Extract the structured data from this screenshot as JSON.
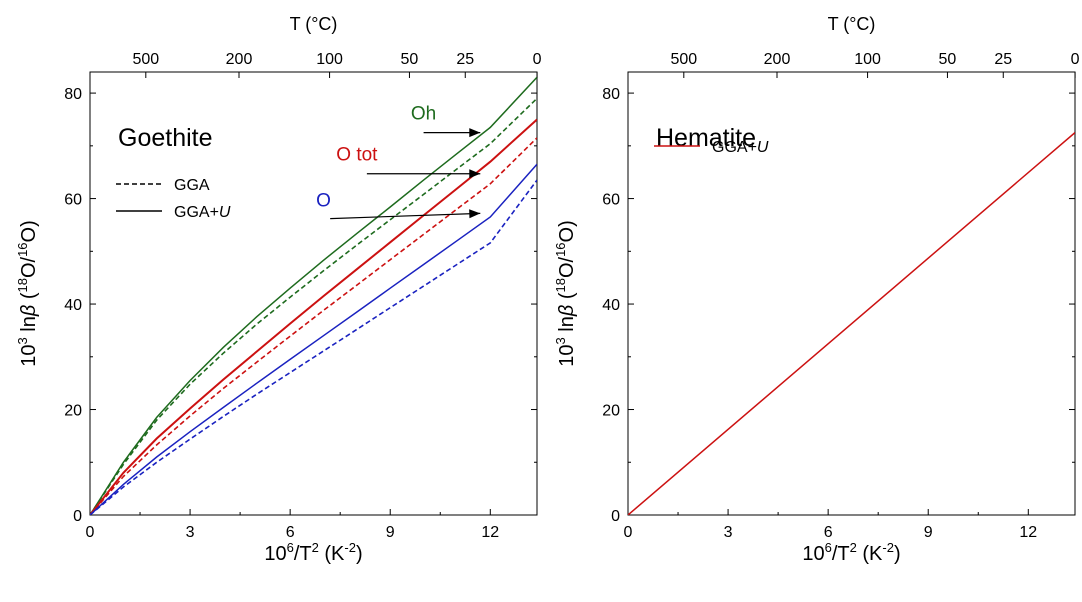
{
  "chart_data": [
    {
      "type": "line",
      "panel_title": "Goethite",
      "xlabel": "10^6/T^2 (K^-2)",
      "ylabel": "10^3 lnβ (18O/16O)",
      "top_xlabel": "T (°C)",
      "xlim": [
        0,
        13.4
      ],
      "ylim": [
        0,
        84
      ],
      "x_ticks": [
        0,
        3,
        6,
        9,
        12
      ],
      "y_ticks": [
        0,
        20,
        40,
        60,
        80
      ],
      "top_ticks_celsius": [
        500,
        200,
        100,
        50,
        25,
        0
      ],
      "legend": [
        {
          "label": "GGA",
          "style": "dashed"
        },
        {
          "label": "GGA+U",
          "style": "solid"
        }
      ],
      "series": [
        {
          "name": "Oh",
          "method": "GGA+U",
          "color": "#1e6b1e",
          "style": "solid",
          "x": [
            0,
            1,
            2,
            3,
            4,
            5,
            6,
            7,
            8,
            9,
            10,
            11,
            12,
            13.4
          ],
          "y": [
            0,
            10,
            18.5,
            25.5,
            31.8,
            37.6,
            43,
            48.3,
            53.4,
            58.4,
            63.5,
            68.5,
            73.5,
            83
          ]
        },
        {
          "name": "Oh",
          "method": "GGA",
          "color": "#1e6b1e",
          "style": "dashed",
          "x": [
            0,
            1,
            2,
            3,
            4,
            5,
            6,
            7,
            8,
            9,
            10,
            11,
            12,
            13.4
          ],
          "y": [
            0,
            9.6,
            18,
            24.8,
            30.7,
            36.2,
            41.3,
            46.3,
            51.2,
            56,
            60.8,
            65.6,
            70.4,
            79
          ]
        },
        {
          "name": "O tot",
          "method": "GGA+U",
          "color": "#cc1111",
          "style": "solid",
          "x": [
            0,
            1,
            2,
            3,
            4,
            5,
            6,
            7,
            8,
            9,
            10,
            11,
            12,
            13.4
          ],
          "y": [
            0,
            8,
            14.5,
            20.2,
            25.7,
            31,
            36.3,
            41.5,
            46.6,
            51.7,
            56.8,
            61.9,
            67,
            75
          ]
        },
        {
          "name": "O tot",
          "method": "GGA",
          "color": "#cc1111",
          "style": "dashed",
          "x": [
            0,
            1,
            2,
            3,
            4,
            5,
            6,
            7,
            8,
            9,
            10,
            11,
            12,
            13.4
          ],
          "y": [
            0,
            7.3,
            13.3,
            18.8,
            24,
            29,
            33.9,
            38.8,
            43.6,
            48.4,
            53.2,
            58,
            62.8,
            71.5
          ]
        },
        {
          "name": "O",
          "method": "GGA+U",
          "color": "#1a22c0",
          "style": "solid",
          "x": [
            0,
            1,
            2,
            3,
            4,
            5,
            6,
            7,
            8,
            9,
            10,
            11,
            12,
            13.4
          ],
          "y": [
            0,
            5.8,
            11,
            15.8,
            20.4,
            25,
            29.5,
            34,
            38.5,
            43,
            47.5,
            52,
            56.5,
            66.5
          ]
        },
        {
          "name": "O",
          "method": "GGA",
          "color": "#1a22c0",
          "style": "dashed",
          "x": [
            0,
            1,
            2,
            3,
            4,
            5,
            6,
            7,
            8,
            9,
            10,
            11,
            12,
            13.4
          ],
          "y": [
            0,
            5.3,
            10,
            14.4,
            18.7,
            22.9,
            27,
            31.1,
            35.2,
            39.3,
            43.4,
            47.5,
            51.6,
            63.5
          ]
        }
      ],
      "annotations": [
        {
          "text": "Oh",
          "color": "#1e6b1e",
          "arrow_from": [
            10,
            72.5
          ],
          "arrow_to": [
            11.7,
            72.5
          ]
        },
        {
          "text": "O tot",
          "color": "#cc1111",
          "arrow_from": [
            8.3,
            64.7
          ],
          "arrow_to": [
            11.7,
            64.7
          ]
        },
        {
          "text": "O",
          "color": "#1a22c0",
          "arrow_from": [
            7.2,
            56.2
          ],
          "arrow_to": [
            11.7,
            57.2
          ]
        }
      ]
    },
    {
      "type": "line",
      "panel_title": "Hematite",
      "xlabel": "10^6/T^2 (K^-2)",
      "ylabel": "10^3 lnβ (18O/16O)",
      "top_xlabel": "T (°C)",
      "xlim": [
        0,
        13.4
      ],
      "ylim": [
        0,
        84
      ],
      "x_ticks": [
        0,
        3,
        6,
        9,
        12
      ],
      "y_ticks": [
        0,
        20,
        40,
        60,
        80
      ],
      "top_ticks_celsius": [
        500,
        200,
        100,
        50,
        25,
        0
      ],
      "legend": [
        {
          "label": "GGA+U",
          "style": "solid",
          "color": "#cc1111"
        }
      ],
      "series": [
        {
          "name": "GGA+U",
          "color": "#cc1111",
          "style": "solid",
          "x": [
            0,
            13.4
          ],
          "y": [
            0,
            72.5
          ]
        }
      ]
    }
  ]
}
